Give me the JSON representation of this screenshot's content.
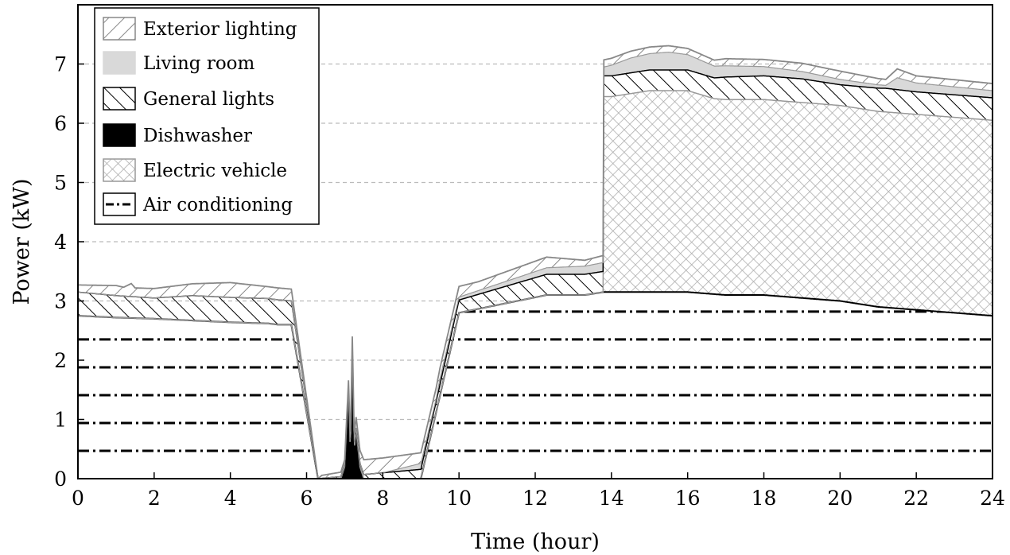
{
  "chart_data": {
    "type": "area",
    "title": "",
    "xlabel": "Time (hour)",
    "ylabel": "Power (kW)",
    "xlim": [
      0,
      24
    ],
    "ylim": [
      0,
      8
    ],
    "xticks": [
      0,
      2,
      4,
      6,
      8,
      10,
      12,
      14,
      16,
      18,
      20,
      22,
      24
    ],
    "yticks": [
      0,
      1,
      2,
      3,
      4,
      5,
      6,
      7
    ],
    "grid": "horizontal dashed",
    "legend_position": "top-left",
    "series_order_bottom_to_top": [
      "Air conditioning",
      "Dishwasher",
      "Electric vehicle",
      "General lights",
      "Living room",
      "Exterior lighting"
    ],
    "series": [
      {
        "name": "Exterior lighting",
        "style": "diagonal-hatch-light",
        "x": [
          0,
          1,
          1.2,
          1.4,
          1.5,
          2,
          3,
          4,
          5,
          5.25,
          5.6,
          6.3,
          6.4,
          7,
          7.5,
          8,
          9,
          10,
          10.5,
          12.3,
          13.3,
          13.8,
          16.7,
          17,
          18,
          19,
          20,
          21.2,
          21.5,
          22,
          24
        ],
        "values": [
          0.12,
          0.17,
          0.15,
          0.22,
          0.15,
          0.16,
          0.2,
          0.25,
          0.2,
          0.2,
          0.2,
          0.0,
          0.05,
          0.08,
          0.25,
          0.25,
          0.18,
          0.18,
          0.15,
          0.18,
          0.1,
          0.12,
          0.1,
          0.12,
          0.12,
          0.14,
          0.14,
          0.1,
          0.15,
          0.12,
          0.12
        ]
      },
      {
        "name": "Living room",
        "style": "light-gray-fill",
        "x": [
          0,
          8,
          8.5,
          9,
          9.4,
          9.5,
          10,
          13.8,
          14.5,
          15.5,
          16.7,
          21.2,
          21.5,
          22,
          24
        ],
        "values": [
          0.0,
          0.0,
          0.05,
          0.1,
          0.05,
          0.1,
          0.05,
          0.15,
          0.25,
          0.3,
          0.2,
          0.05,
          0.2,
          0.15,
          0.12
        ]
      },
      {
        "name": "General lights",
        "style": "diagonal-hatch-dark",
        "x": [
          0,
          1,
          2,
          3,
          4,
          5,
          5.25,
          5.6,
          6.3,
          12.3,
          13.3,
          13.8,
          16.7,
          17,
          18,
          19,
          20,
          21.2,
          22,
          24
        ],
        "values": [
          0.4,
          0.37,
          0.35,
          0.42,
          0.42,
          0.42,
          0.42,
          0.4,
          0.0,
          0.35,
          0.35,
          0.35,
          0.35,
          0.38,
          0.4,
          0.4,
          0.35,
          0.4,
          0.38,
          0.38
        ]
      },
      {
        "name": "Dishwasher",
        "style": "black-fill",
        "x": [
          6.9,
          7.0,
          7.1,
          7.15,
          7.2,
          7.25,
          7.3,
          7.4,
          7.5
        ],
        "values": [
          0,
          0.2,
          1.5,
          0.4,
          2.2,
          0.5,
          0.8,
          0.2,
          0
        ]
      },
      {
        "name": "Electric vehicle",
        "style": "crosshatch",
        "x": [
          13.8,
          14,
          15,
          16,
          16.7,
          21.2,
          22,
          23,
          24
        ],
        "values": [
          3.3,
          3.3,
          3.4,
          3.4,
          3.3,
          3.3,
          3.3,
          3.3,
          3.3
        ]
      },
      {
        "name": "Air conditioning",
        "style": "dash-dot-lines",
        "x": [
          0,
          1,
          2,
          3,
          4,
          5,
          5.25,
          5.6,
          6.3,
          7,
          8,
          9,
          10,
          12.3,
          13.3,
          13.8,
          15,
          16,
          17,
          18,
          19,
          20,
          21,
          22,
          23,
          24
        ],
        "values": [
          2.75,
          2.72,
          2.7,
          2.67,
          2.64,
          2.62,
          2.6,
          2.6,
          0.0,
          0.0,
          0.0,
          0.0,
          2.8,
          3.1,
          3.1,
          3.15,
          3.15,
          3.15,
          3.1,
          3.1,
          3.05,
          3.0,
          2.9,
          2.85,
          2.8,
          2.75
        ]
      }
    ]
  }
}
